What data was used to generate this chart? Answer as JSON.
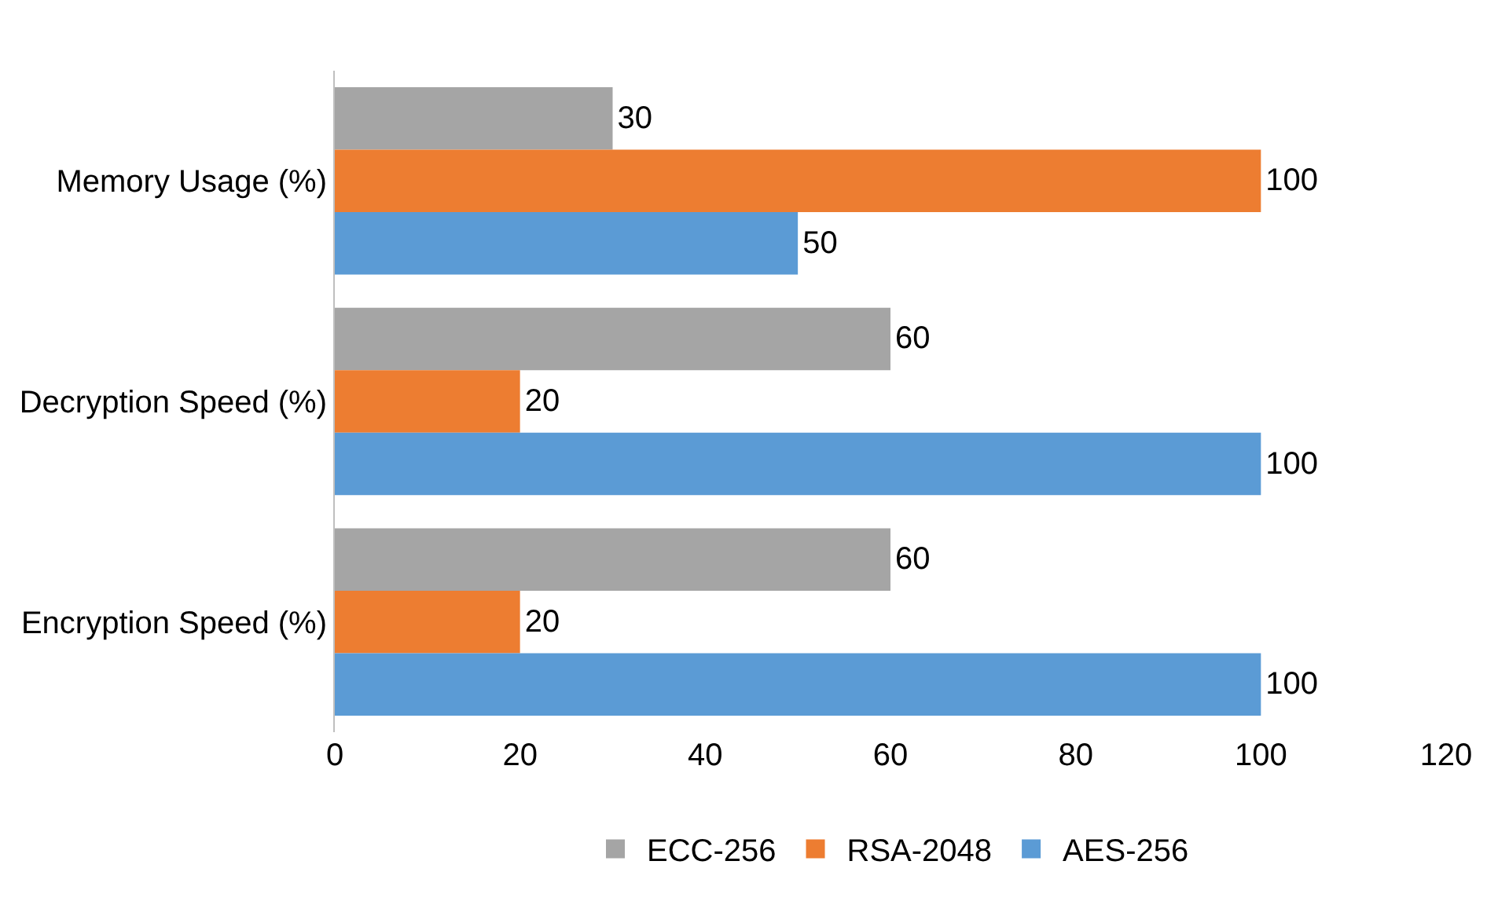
{
  "chart_data": {
    "type": "bar",
    "orientation": "horizontal",
    "categories": [
      "Memory Usage (%)",
      "Decryption Speed (%)",
      "Encryption Speed (%)"
    ],
    "series": [
      {
        "name": "ECC-256",
        "color": "#a5a5a5",
        "values": [
          30,
          60,
          60
        ]
      },
      {
        "name": "RSA-2048",
        "color": "#ed7d31",
        "values": [
          100,
          20,
          20
        ]
      },
      {
        "name": "AES-256",
        "color": "#5b9bd5",
        "values": [
          50,
          100,
          100
        ]
      }
    ],
    "xlim": [
      0,
      120
    ],
    "xticks": [
      0,
      20,
      40,
      60,
      80,
      100,
      120
    ],
    "legend": "bottom",
    "data_labels": true
  }
}
